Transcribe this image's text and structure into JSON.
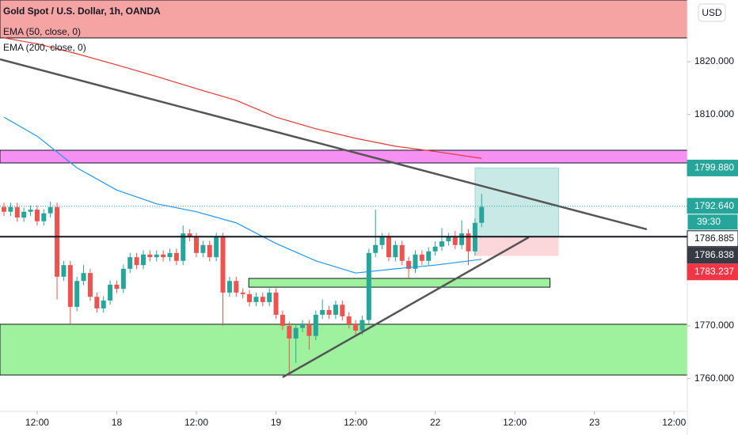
{
  "chart_data": {
    "type": "candlestick",
    "title": "Gold Spot / U.S. Dollar, 1h, OANDA",
    "currency": "USD",
    "xlim": [
      -5.6,
      98.0
    ],
    "xticks": [
      {
        "value": 0,
        "label": "12:00"
      },
      {
        "value": 12,
        "label": "18"
      },
      {
        "value": 24,
        "label": "12:00"
      },
      {
        "value": 36,
        "label": "19"
      },
      {
        "value": 48,
        "label": "12:00"
      },
      {
        "value": 60,
        "label": "22"
      },
      {
        "value": 72,
        "label": "12:00"
      },
      {
        "value": 84,
        "label": "23"
      },
      {
        "value": 96,
        "label": "12:00"
      }
    ],
    "ylim": [
      1753.83,
      1831.68
    ],
    "yticks": [
      {
        "value": 1760,
        "label": "1760.000"
      },
      {
        "value": 1770,
        "label": "1770.000"
      },
      {
        "value": 1810,
        "label": "1810.000"
      },
      {
        "value": 1820,
        "label": "1820.000"
      }
    ],
    "x": [
      -5,
      -4,
      -3,
      -2,
      -1,
      0,
      1,
      2,
      3,
      4,
      5,
      6,
      7,
      8,
      9,
      10,
      11,
      12,
      13,
      14,
      15,
      16,
      17,
      18,
      19,
      20,
      21,
      22,
      23,
      24,
      25,
      26,
      27,
      28,
      29,
      30,
      31,
      32,
      33,
      34,
      35,
      36,
      37,
      38,
      39,
      40,
      41,
      42,
      43,
      44,
      45,
      46,
      47,
      48,
      49,
      50,
      51,
      52,
      53,
      54,
      55,
      56,
      57,
      58,
      59,
      60,
      61,
      62,
      63,
      64,
      65,
      66,
      67
    ],
    "open": [
      1792.5,
      1791.6,
      1792.5,
      1790.5,
      1791.6,
      1792.0,
      1789.8,
      1791.3,
      1792.5,
      1779.3,
      1781.5,
      1773.6,
      1778.5,
      1780.0,
      1775.5,
      1773.3,
      1774.8,
      1777.8,
      1777.0,
      1780.8,
      1783.0,
      1781.5,
      1783.5,
      1783.0,
      1783.5,
      1783.0,
      1783.8,
      1782.3,
      1787.5,
      1786.8,
      1783.8,
      1785.3,
      1783.0,
      1786.8,
      1776.3,
      1778.5,
      1776.3,
      1776.0,
      1774.5,
      1775.5,
      1774.5,
      1776.3,
      1772.1,
      1770.0,
      1767.6,
      1769.6,
      1770.3,
      1768.1,
      1772.1,
      1773.0,
      1772.1,
      1774.0,
      1771.8,
      1770.3,
      1769.1,
      1771.1,
      1783.8,
      1785.3,
      1786.8,
      1783.0,
      1785.3,
      1782.3,
      1780.8,
      1783.5,
      1782.3,
      1784.1,
      1785.0,
      1786.0,
      1786.8,
      1785.3,
      1787.5,
      1784.1,
      1789.5
    ],
    "high": [
      1793.3,
      1793.3,
      1793.3,
      1792.4,
      1792.8,
      1792.8,
      1792.1,
      1793.5,
      1793.3,
      1782.3,
      1782.3,
      1779.3,
      1781.5,
      1780.8,
      1776.3,
      1775.6,
      1778.6,
      1778.6,
      1781.6,
      1783.8,
      1783.8,
      1784.3,
      1784.3,
      1784.3,
      1784.3,
      1784.6,
      1784.6,
      1789.0,
      1788.3,
      1787.6,
      1786.1,
      1786.1,
      1787.6,
      1787.6,
      1779.3,
      1779.3,
      1777.1,
      1776.8,
      1776.3,
      1776.3,
      1777.1,
      1777.1,
      1772.9,
      1770.8,
      1770.4,
      1771.1,
      1771.1,
      1772.9,
      1775.0,
      1773.8,
      1774.8,
      1774.8,
      1772.6,
      1771.1,
      1771.9,
      1784.6,
      1792.0,
      1787.6,
      1787.6,
      1786.1,
      1786.1,
      1783.1,
      1784.3,
      1784.3,
      1784.9,
      1786.0,
      1788.5,
      1787.6,
      1788.0,
      1790.0,
      1788.3,
      1790.3,
      1795.0
    ],
    "low": [
      1790.8,
      1790.8,
      1789.7,
      1789.7,
      1790.8,
      1789.0,
      1789.0,
      1790.5,
      1775.0,
      1778.5,
      1770.3,
      1772.8,
      1777.7,
      1774.7,
      1772.5,
      1772.5,
      1774.0,
      1776.2,
      1776.2,
      1780.0,
      1780.7,
      1780.7,
      1782.2,
      1782.2,
      1782.2,
      1782.2,
      1781.5,
      1781.5,
      1786.0,
      1783.0,
      1783.0,
      1782.2,
      1782.2,
      1770.0,
      1775.5,
      1775.5,
      1775.2,
      1773.7,
      1773.7,
      1773.7,
      1773.7,
      1771.3,
      1769.2,
      1760.5,
      1763.0,
      1768.8,
      1765.5,
      1767.3,
      1771.3,
      1771.3,
      1771.3,
      1771.0,
      1769.5,
      1768.3,
      1768.3,
      1770.3,
      1783.0,
      1784.5,
      1782.2,
      1782.2,
      1781.5,
      1779.0,
      1780.0,
      1781.5,
      1781.5,
      1783.3,
      1784.2,
      1785.2,
      1784.5,
      1784.5,
      1781.5,
      1783.3,
      1788.7
    ],
    "close": [
      1791.6,
      1792.5,
      1790.5,
      1791.6,
      1792.0,
      1789.8,
      1791.3,
      1792.5,
      1779.3,
      1781.5,
      1773.6,
      1778.5,
      1780.0,
      1775.5,
      1773.3,
      1774.8,
      1777.8,
      1777.0,
      1780.8,
      1783.0,
      1781.5,
      1783.5,
      1783.0,
      1783.5,
      1783.0,
      1783.8,
      1782.3,
      1787.5,
      1786.8,
      1783.8,
      1785.3,
      1783.0,
      1786.8,
      1776.3,
      1778.5,
      1776.3,
      1776.0,
      1774.5,
      1775.5,
      1774.5,
      1776.3,
      1772.1,
      1770.0,
      1767.6,
      1769.6,
      1770.3,
      1768.1,
      1772.1,
      1773.0,
      1772.1,
      1774.0,
      1771.8,
      1770.3,
      1769.1,
      1771.1,
      1783.8,
      1785.3,
      1786.8,
      1783.0,
      1785.3,
      1782.3,
      1780.8,
      1783.5,
      1782.3,
      1784.1,
      1785.0,
      1786.0,
      1786.8,
      1785.3,
      1787.5,
      1784.1,
      1789.5,
      1792.5
    ],
    "up_color": "#26a69a",
    "down_color": "#ef5350",
    "series": [
      {
        "name": "EMA (50, close, 0)",
        "color": "#2196f3",
        "x": [
          -5,
          0,
          6,
          12,
          18,
          24,
          30,
          36,
          42,
          48,
          54,
          60,
          67
        ],
        "values": [
          1809.5,
          1805.9,
          1799.9,
          1795.7,
          1793.1,
          1791.6,
          1789.5,
          1785.6,
          1782.3,
          1780.0,
          1780.8,
          1781.5,
          1782.6
        ]
      },
      {
        "name": "EMA (200, close, 0)",
        "color": "#e53935",
        "x": [
          -5,
          0,
          6,
          12,
          18,
          24,
          30,
          36,
          42,
          48,
          54,
          60,
          67
        ],
        "values": [
          1824.5,
          1823.4,
          1821.5,
          1819.4,
          1817.2,
          1814.9,
          1812.7,
          1809.5,
          1807.3,
          1805.5,
          1804.0,
          1803.0,
          1801.7
        ]
      }
    ],
    "lines": [
      {
        "color": "#555555",
        "x": [
          -5.6,
          91.9
        ],
        "values": [
          1820.45,
          1788.27
        ]
      },
      {
        "color": "#555555",
        "x": [
          37.0,
          74.1
        ],
        "values": [
          1760.27,
          1786.77
        ]
      }
    ],
    "hlines": [
      {
        "value": 1786.885,
        "color": "#131722"
      }
    ],
    "zones": [
      {
        "range": [
          1824.5,
          1831.68
        ],
        "color": "#f5a3a3"
      },
      {
        "range": [
          1800.84,
          1803.24
        ],
        "color": "#f690f2"
      },
      {
        "range": [
          1760.7,
          1770.3
        ],
        "color": "#9ef29e"
      }
    ],
    "boxes": [
      {
        "x": [
          31.9,
          77.3
        ],
        "range": [
          1777.32,
          1778.98
        ],
        "color": "#9ef29e"
      }
    ],
    "position": {
      "x": [
        66.0,
        78.6
      ],
      "entry": 1786.885,
      "target": 1799.88,
      "stop": 1783.237
    },
    "price_tags": [
      {
        "value": 1799.88,
        "label": "1799.880",
        "color": "#26a69a",
        "text_color": "#ffffff"
      },
      {
        "value": 1792.64,
        "label": "1792.640",
        "color": "#26a69a",
        "text_color": "#ffffff",
        "countdown": "39:30"
      },
      {
        "value": 1786.885,
        "label": "1786.885",
        "color": "#ffffff",
        "text_color": "#131722"
      },
      {
        "value": 1786.838,
        "label": "1786.838",
        "color": "#363a45",
        "text_color": "#ffffff"
      },
      {
        "value": 1783.237,
        "label": "1783.237",
        "color": "#f23645",
        "text_color": "#ffffff"
      }
    ]
  }
}
